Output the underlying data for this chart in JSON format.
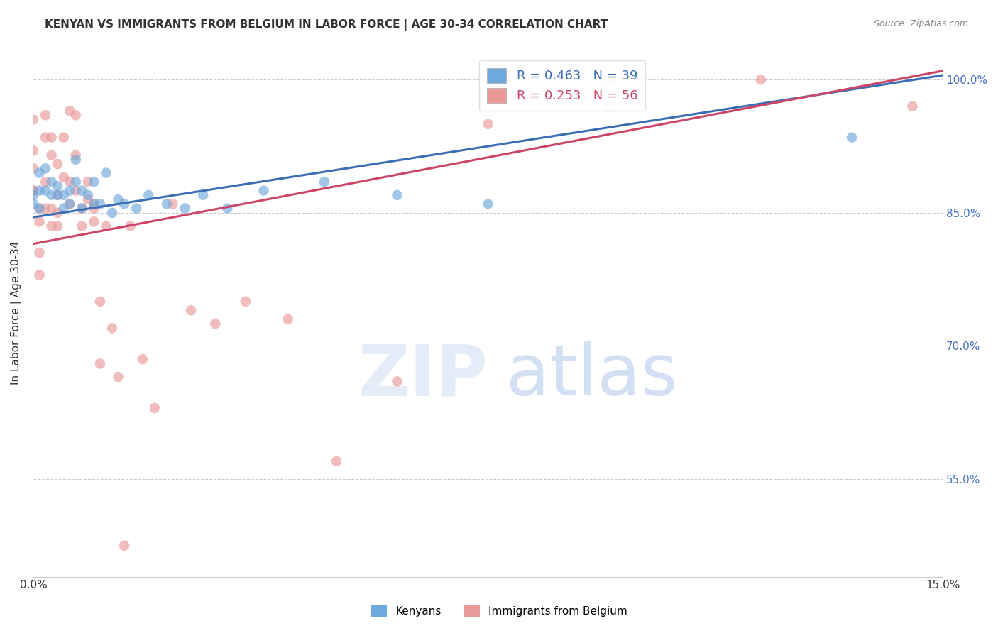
{
  "title": "KENYAN VS IMMIGRANTS FROM BELGIUM IN LABOR FORCE | AGE 30-34 CORRELATION CHART",
  "source": "Source: ZipAtlas.com",
  "ylabel": "In Labor Force | Age 30-34",
  "xlim": [
    0.0,
    0.15
  ],
  "ylim": [
    0.44,
    1.035
  ],
  "xticks": [
    0.0,
    0.025,
    0.05,
    0.075,
    0.1,
    0.125,
    0.15
  ],
  "xticklabels": [
    "0.0%",
    "",
    "",
    "",
    "",
    "",
    "15.0%"
  ],
  "yticks": [
    0.55,
    0.7,
    0.85,
    1.0
  ],
  "yticklabels": [
    "55.0%",
    "70.0%",
    "85.0%",
    "100.0%"
  ],
  "kenyan_R": 0.463,
  "kenyan_N": 39,
  "belgium_R": 0.253,
  "belgium_N": 56,
  "kenyan_color": "#6fa8dc",
  "belgium_color": "#ea9999",
  "kenyan_line_color": "#3b6eb5",
  "belgium_line_color": "#cc4466",
  "kenyan_line_y0": 0.845,
  "kenyan_line_y1": 1.005,
  "belgium_line_y0": 0.815,
  "belgium_line_y1": 1.01,
  "legend_label_kenyan": "Kenyans",
  "legend_label_belgium": "Immigrants from Belgium",
  "kenyan_x": [
    0.0,
    0.0,
    0.001,
    0.001,
    0.001,
    0.002,
    0.002,
    0.003,
    0.003,
    0.004,
    0.004,
    0.005,
    0.005,
    0.006,
    0.006,
    0.007,
    0.007,
    0.008,
    0.008,
    0.009,
    0.01,
    0.01,
    0.011,
    0.012,
    0.013,
    0.014,
    0.015,
    0.017,
    0.019,
    0.022,
    0.025,
    0.028,
    0.032,
    0.038,
    0.048,
    0.06,
    0.075,
    0.095,
    0.135
  ],
  "kenyan_y": [
    0.87,
    0.86,
    0.895,
    0.875,
    0.855,
    0.9,
    0.875,
    0.885,
    0.87,
    0.88,
    0.87,
    0.87,
    0.855,
    0.875,
    0.86,
    0.91,
    0.885,
    0.875,
    0.855,
    0.87,
    0.885,
    0.86,
    0.86,
    0.895,
    0.85,
    0.865,
    0.86,
    0.855,
    0.87,
    0.86,
    0.855,
    0.87,
    0.855,
    0.875,
    0.885,
    0.87,
    0.86,
    1.0,
    0.935
  ],
  "belgium_x": [
    0.0,
    0.0,
    0.0,
    0.0,
    0.0,
    0.001,
    0.001,
    0.001,
    0.001,
    0.002,
    0.002,
    0.002,
    0.002,
    0.003,
    0.003,
    0.003,
    0.003,
    0.004,
    0.004,
    0.004,
    0.004,
    0.005,
    0.005,
    0.006,
    0.006,
    0.006,
    0.007,
    0.007,
    0.007,
    0.008,
    0.008,
    0.009,
    0.009,
    0.01,
    0.01,
    0.01,
    0.011,
    0.011,
    0.012,
    0.013,
    0.014,
    0.015,
    0.016,
    0.018,
    0.02,
    0.023,
    0.026,
    0.03,
    0.035,
    0.042,
    0.05,
    0.06,
    0.075,
    0.095,
    0.12,
    0.145
  ],
  "belgium_y": [
    0.875,
    0.92,
    0.9,
    0.875,
    0.955,
    0.855,
    0.84,
    0.805,
    0.78,
    0.855,
    0.885,
    0.935,
    0.96,
    0.855,
    0.915,
    0.935,
    0.835,
    0.87,
    0.905,
    0.85,
    0.835,
    0.89,
    0.935,
    0.885,
    0.86,
    0.965,
    0.915,
    0.875,
    0.96,
    0.855,
    0.835,
    0.885,
    0.865,
    0.86,
    0.84,
    0.855,
    0.75,
    0.68,
    0.835,
    0.72,
    0.665,
    0.475,
    0.835,
    0.685,
    0.63,
    0.86,
    0.74,
    0.725,
    0.75,
    0.73,
    0.57,
    0.66,
    0.95,
    0.97,
    1.0,
    0.97
  ]
}
